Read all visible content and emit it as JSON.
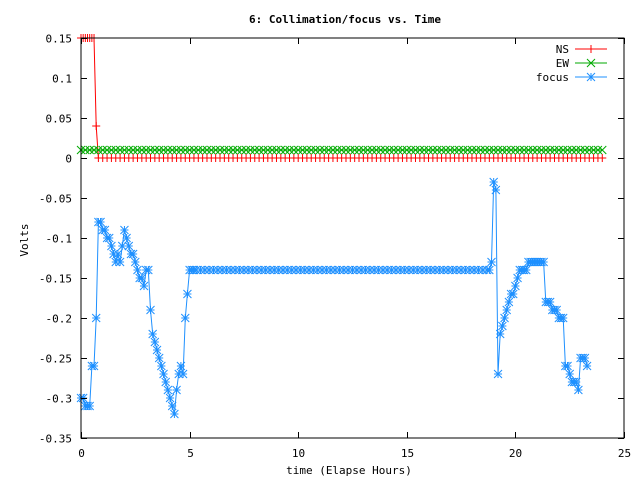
{
  "chart_data": {
    "type": "line",
    "title": "6: Collimation/focus vs. Time",
    "xlabel": "time (Elapse Hours)",
    "ylabel": "Volts",
    "xlim": [
      0,
      25
    ],
    "ylim": [
      -0.35,
      0.15
    ],
    "xticks": [
      0,
      5,
      10,
      15,
      20,
      25
    ],
    "xtick_labels": [
      "0",
      "5",
      "10",
      "15",
      "20",
      "25"
    ],
    "yticks": [
      0.15,
      0.1,
      0.05,
      0,
      -0.05,
      -0.1,
      -0.15,
      -0.2,
      -0.25,
      -0.3,
      -0.35
    ],
    "ytick_labels": [
      "0.15",
      "0.1",
      "0.05",
      "0",
      "-0.05",
      "-0.1",
      "-0.15",
      "-0.2",
      "-0.25",
      "-0.3",
      "-0.35"
    ],
    "grid": false,
    "legend_position": "top-right",
    "series": [
      {
        "name": "NS",
        "color": "#ff0000",
        "marker": "plus",
        "points": [
          [
            0,
            0.15
          ],
          [
            0.1,
            0.15
          ],
          [
            0.2,
            0.15
          ],
          [
            0.3,
            0.15
          ],
          [
            0.4,
            0.15
          ],
          [
            0.5,
            0.15
          ],
          [
            0.6,
            0.15
          ],
          [
            0.7,
            0.04
          ],
          [
            0.8,
            0
          ]
        ],
        "flat_from": 0.8,
        "flat_to": 24,
        "flat_step": 0.2,
        "flat_value": 0
      },
      {
        "name": "EW",
        "color": "#00aa00",
        "marker": "x",
        "flat_from": 0,
        "flat_to": 24,
        "flat_step": 0.2,
        "flat_value": 0.01
      },
      {
        "name": "focus",
        "color": "#1e90ff",
        "marker": "star",
        "points": [
          [
            0,
            -0.3
          ],
          [
            0.1,
            -0.3
          ],
          [
            0.2,
            -0.31
          ],
          [
            0.3,
            -0.31
          ],
          [
            0.4,
            -0.31
          ],
          [
            0.5,
            -0.26
          ],
          [
            0.6,
            -0.26
          ],
          [
            0.7,
            -0.2
          ],
          [
            0.8,
            -0.08
          ],
          [
            0.9,
            -0.08
          ],
          [
            1.0,
            -0.09
          ],
          [
            1.1,
            -0.09
          ],
          [
            1.2,
            -0.1
          ],
          [
            1.3,
            -0.1
          ],
          [
            1.4,
            -0.11
          ],
          [
            1.5,
            -0.12
          ],
          [
            1.6,
            -0.13
          ],
          [
            1.7,
            -0.12
          ],
          [
            1.8,
            -0.13
          ],
          [
            1.9,
            -0.11
          ],
          [
            2.0,
            -0.09
          ],
          [
            2.1,
            -0.1
          ],
          [
            2.2,
            -0.11
          ],
          [
            2.3,
            -0.12
          ],
          [
            2.4,
            -0.12
          ],
          [
            2.5,
            -0.13
          ],
          [
            2.6,
            -0.14
          ],
          [
            2.7,
            -0.15
          ],
          [
            2.8,
            -0.15
          ],
          [
            2.9,
            -0.16
          ],
          [
            3.0,
            -0.14
          ],
          [
            3.1,
            -0.14
          ],
          [
            3.2,
            -0.19
          ],
          [
            3.3,
            -0.22
          ],
          [
            3.4,
            -0.23
          ],
          [
            3.5,
            -0.24
          ],
          [
            3.6,
            -0.25
          ],
          [
            3.7,
            -0.26
          ],
          [
            3.8,
            -0.27
          ],
          [
            3.9,
            -0.28
          ],
          [
            4.0,
            -0.29
          ],
          [
            4.1,
            -0.3
          ],
          [
            4.2,
            -0.31
          ],
          [
            4.3,
            -0.32
          ],
          [
            4.4,
            -0.29
          ],
          [
            4.5,
            -0.27
          ],
          [
            4.6,
            -0.26
          ],
          [
            4.7,
            -0.27
          ],
          [
            4.8,
            -0.2
          ],
          [
            4.9,
            -0.17
          ],
          [
            5.0,
            -0.14
          ],
          [
            5.1,
            -0.14
          ],
          [
            5.2,
            -0.14
          ],
          [
            18.8,
            -0.14
          ],
          [
            18.9,
            -0.13
          ],
          [
            19.0,
            -0.03
          ],
          [
            19.1,
            -0.04
          ],
          [
            19.2,
            -0.27
          ],
          [
            19.3,
            -0.22
          ],
          [
            19.4,
            -0.21
          ],
          [
            19.5,
            -0.2
          ],
          [
            19.6,
            -0.19
          ],
          [
            19.7,
            -0.18
          ],
          [
            19.8,
            -0.17
          ],
          [
            19.9,
            -0.17
          ],
          [
            20.0,
            -0.16
          ],
          [
            20.1,
            -0.15
          ],
          [
            20.2,
            -0.14
          ],
          [
            20.3,
            -0.14
          ],
          [
            20.4,
            -0.14
          ],
          [
            20.5,
            -0.14
          ],
          [
            20.6,
            -0.13
          ],
          [
            20.7,
            -0.13
          ],
          [
            20.8,
            -0.13
          ],
          [
            20.9,
            -0.13
          ],
          [
            21.0,
            -0.13
          ],
          [
            21.1,
            -0.13
          ],
          [
            21.2,
            -0.13
          ],
          [
            21.3,
            -0.13
          ],
          [
            21.4,
            -0.18
          ],
          [
            21.5,
            -0.18
          ],
          [
            21.6,
            -0.18
          ],
          [
            21.7,
            -0.19
          ],
          [
            21.8,
            -0.19
          ],
          [
            21.9,
            -0.19
          ],
          [
            22.0,
            -0.2
          ],
          [
            22.1,
            -0.2
          ],
          [
            22.2,
            -0.2
          ],
          [
            22.3,
            -0.26
          ],
          [
            22.4,
            -0.26
          ],
          [
            22.5,
            -0.27
          ],
          [
            22.6,
            -0.28
          ],
          [
            22.7,
            -0.28
          ],
          [
            22.8,
            -0.28
          ],
          [
            22.9,
            -0.29
          ],
          [
            23.0,
            -0.25
          ],
          [
            23.1,
            -0.25
          ],
          [
            23.2,
            -0.25
          ],
          [
            23.3,
            -0.26
          ]
        ],
        "flat_segment": {
          "from": 5.3,
          "to": 18.7,
          "step": 0.2,
          "value": -0.14
        }
      }
    ]
  }
}
